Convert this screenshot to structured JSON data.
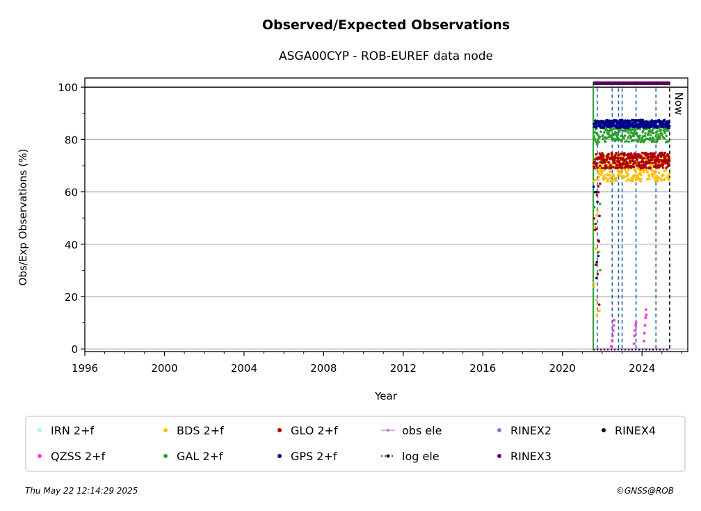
{
  "chart_data": {
    "type": "scatter",
    "title": "Observed/Expected Observations",
    "subtitle": "ASGA00CYP - ROB-EUREF data node",
    "xlabel": "Year",
    "ylabel": "Obs/Exp Observations (%)",
    "xlim": [
      1996,
      2026.3
    ],
    "ylim": [
      -1,
      103.5
    ],
    "xticks": [
      "1996",
      "2000",
      "2004",
      "2008",
      "2012",
      "2016",
      "2020",
      "2024"
    ],
    "yticks": [
      "0",
      "20",
      "40",
      "60",
      "80",
      "100"
    ],
    "grid": "horizontal",
    "reference_line_y": 100,
    "now_label": "Now",
    "now_x": 2025.39,
    "station_start": 2021.55,
    "event_lines_x": [
      2021.75,
      2022.5,
      2022.82,
      2023.0,
      2023.7,
      2024.7
    ],
    "legend_position": "bottom",
    "series": [
      {
        "name": "IRN 2+f",
        "color": "#b5f0f0",
        "level": 0,
        "spread": 0,
        "marker": "dot"
      },
      {
        "name": "QZSS 2+f",
        "color": "#ff3fd0",
        "marker": "dot",
        "points": [
          [
            2022.45,
            1
          ],
          [
            2022.5,
            3
          ],
          [
            2022.52,
            5
          ],
          [
            2022.55,
            7
          ],
          [
            2022.58,
            9
          ],
          [
            2022.6,
            11
          ],
          [
            2023.6,
            2
          ],
          [
            2023.62,
            5
          ],
          [
            2023.65,
            7
          ],
          [
            2023.68,
            9
          ],
          [
            2023.7,
            10
          ],
          [
            2024.1,
            3
          ],
          [
            2024.12,
            6
          ],
          [
            2024.15,
            9
          ],
          [
            2024.18,
            12
          ],
          [
            2024.2,
            15
          ],
          [
            2024.22,
            13
          ]
        ]
      },
      {
        "name": "BDS 2+f",
        "color": "#ffbf00",
        "level": 69,
        "spread": 5,
        "marker": "dot"
      },
      {
        "name": "GAL 2+f",
        "color": "#2ca02c",
        "level": 83,
        "spread": 4,
        "marker": "dot"
      },
      {
        "name": "GLO 2+f",
        "color": "#b00000",
        "level": 72,
        "spread": 3,
        "marker": "dot"
      },
      {
        "name": "GPS 2+f",
        "color": "#00008b",
        "level": 86,
        "spread": 1.5,
        "marker": "dot"
      },
      {
        "name": "obs ele",
        "color": "#c080d0",
        "level": 0,
        "marker": "line-dot"
      },
      {
        "name": "log ele",
        "color": "#000000",
        "level": 0,
        "marker": "dotted-line"
      },
      {
        "name": "RINEX2",
        "color": "#8080c0",
        "marker": "dot"
      },
      {
        "name": "RINEX3",
        "color": "#5a005a",
        "level": 101.5,
        "marker": "dot"
      },
      {
        "name": "RINEX4",
        "color": "#1a0020",
        "marker": "dot"
      }
    ],
    "legend_order": [
      "IRN 2+f",
      "BDS 2+f",
      "GLO 2+f",
      "obs ele",
      "RINEX2",
      "RINEX4",
      "QZSS 2+f",
      "GAL 2+f",
      "GPS 2+f",
      "log ele",
      "RINEX3"
    ]
  },
  "footer": {
    "timestamp": "Thu May 22 12:14:29 2025",
    "credit": "©GNSS@ROB"
  }
}
